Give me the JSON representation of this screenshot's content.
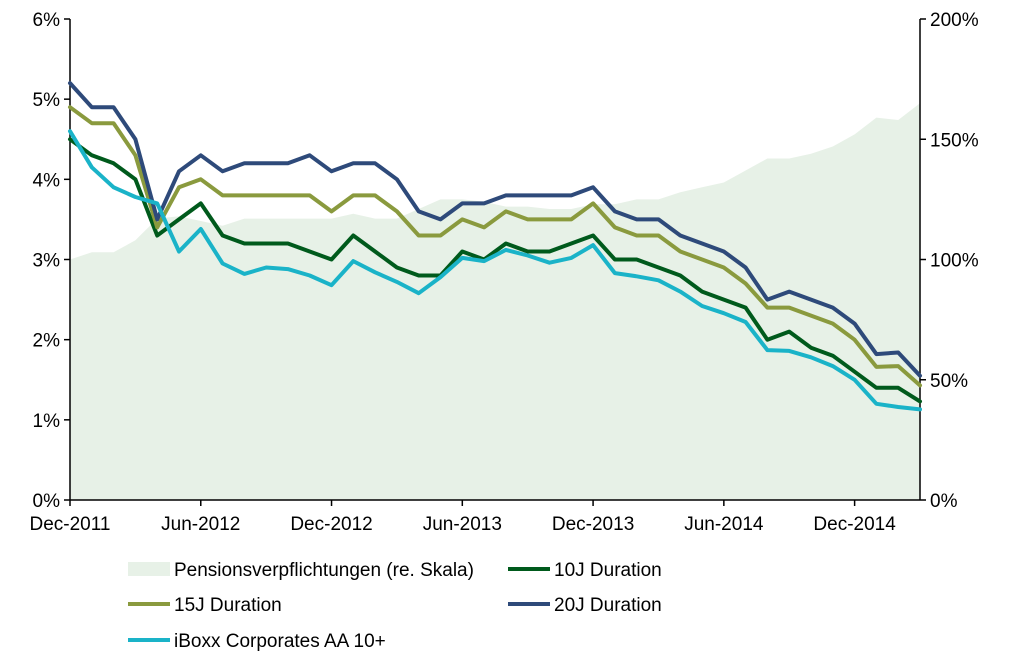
{
  "chart_data": {
    "type": "line",
    "x": [
      "Dec-2011",
      "Jan-2012",
      "Feb-2012",
      "Mar-2012",
      "Apr-2012",
      "May-2012",
      "Jun-2012",
      "Jul-2012",
      "Aug-2012",
      "Sep-2012",
      "Oct-2012",
      "Nov-2012",
      "Dec-2012",
      "Jan-2013",
      "Feb-2013",
      "Mar-2013",
      "Apr-2013",
      "May-2013",
      "Jun-2013",
      "Jul-2013",
      "Aug-2013",
      "Sep-2013",
      "Oct-2013",
      "Nov-2013",
      "Dec-2013",
      "Jan-2014",
      "Feb-2014",
      "Mar-2014",
      "Apr-2014",
      "May-2014",
      "Jun-2014",
      "Jul-2014",
      "Aug-2014",
      "Sep-2014",
      "Oct-2014",
      "Nov-2014",
      "Dec-2014",
      "Jan-2015",
      "Feb-2015",
      "Mar-2015"
    ],
    "x_ticks": [
      "Dec-2011",
      "Jun-2012",
      "Dec-2012",
      "Jun-2013",
      "Dec-2013",
      "Jun-2014",
      "Dec-2014"
    ],
    "y_left": {
      "ticks": [
        "0%",
        "1%",
        "2%",
        "3%",
        "4%",
        "5%",
        "6%"
      ],
      "range": [
        0,
        6
      ]
    },
    "y_right": {
      "ticks": [
        "0%",
        "50%",
        "100%",
        "150%",
        "200%"
      ],
      "range": [
        0,
        200
      ]
    },
    "area": {
      "name": "Pensionsverpflichtungen (re. Skala)",
      "axis": "right",
      "color": "#e7f1e7",
      "values": [
        100,
        103,
        103,
        108,
        117,
        118,
        116,
        114,
        117,
        117,
        117,
        117,
        117,
        119,
        117,
        117,
        121,
        125,
        125,
        124,
        122,
        122,
        121,
        121,
        123,
        123,
        125,
        125,
        128,
        130,
        132,
        137,
        142,
        142,
        144,
        147,
        152,
        159,
        158,
        165
      ]
    },
    "series": [
      {
        "name": "10J Duration",
        "color": "#005a1c",
        "values": [
          4.5,
          4.3,
          4.2,
          4.0,
          3.3,
          3.5,
          3.7,
          3.3,
          3.2,
          3.2,
          3.2,
          3.1,
          3.0,
          3.3,
          3.1,
          2.9,
          2.8,
          2.8,
          3.1,
          3.0,
          3.2,
          3.1,
          3.1,
          3.2,
          3.3,
          3.0,
          3.0,
          2.9,
          2.8,
          2.6,
          2.5,
          2.4,
          2.0,
          2.1,
          1.9,
          1.8,
          1.6,
          1.4,
          1.4,
          1.23
        ]
      },
      {
        "name": "15J Duration",
        "color": "#8a9a3e",
        "values": [
          4.9,
          4.7,
          4.7,
          4.3,
          3.4,
          3.9,
          4.0,
          3.8,
          3.8,
          3.8,
          3.8,
          3.8,
          3.6,
          3.8,
          3.8,
          3.6,
          3.3,
          3.3,
          3.5,
          3.4,
          3.6,
          3.5,
          3.5,
          3.5,
          3.7,
          3.4,
          3.3,
          3.3,
          3.1,
          3.0,
          2.9,
          2.7,
          2.4,
          2.4,
          2.3,
          2.2,
          2.0,
          1.66,
          1.67,
          1.43
        ]
      },
      {
        "name": "20J Duration",
        "color": "#2e4a7a",
        "values": [
          5.2,
          4.9,
          4.9,
          4.5,
          3.5,
          4.1,
          4.3,
          4.1,
          4.2,
          4.2,
          4.2,
          4.3,
          4.1,
          4.2,
          4.2,
          4.0,
          3.6,
          3.5,
          3.7,
          3.7,
          3.8,
          3.8,
          3.8,
          3.8,
          3.9,
          3.6,
          3.5,
          3.5,
          3.3,
          3.2,
          3.1,
          2.9,
          2.5,
          2.6,
          2.5,
          2.4,
          2.2,
          1.82,
          1.84,
          1.55
        ]
      },
      {
        "name": "iBoxx Corporates AA 10+",
        "color": "#1ab3c8",
        "values": [
          4.6,
          4.15,
          3.9,
          3.78,
          3.7,
          3.1,
          3.38,
          2.95,
          2.82,
          2.9,
          2.88,
          2.8,
          2.68,
          2.98,
          2.84,
          2.72,
          2.58,
          2.78,
          3.02,
          2.98,
          3.12,
          3.05,
          2.96,
          3.02,
          3.18,
          2.83,
          2.79,
          2.74,
          2.6,
          2.42,
          2.33,
          2.22,
          1.87,
          1.86,
          1.78,
          1.67,
          1.5,
          1.2,
          1.16,
          1.13
        ]
      }
    ],
    "legend": {
      "placement": "bottom",
      "items": [
        {
          "label": "Pensionsverpflichtungen (re. Skala)",
          "kind": "area",
          "color": "#e7f1e7"
        },
        {
          "label": "10J Duration",
          "kind": "line",
          "color": "#005a1c"
        },
        {
          "label": "15J Duration",
          "kind": "line",
          "color": "#8a9a3e"
        },
        {
          "label": "20J Duration",
          "kind": "line",
          "color": "#2e4a7a"
        },
        {
          "label": "iBoxx Corporates AA 10+",
          "kind": "line",
          "color": "#1ab3c8"
        }
      ]
    },
    "grid": false
  }
}
